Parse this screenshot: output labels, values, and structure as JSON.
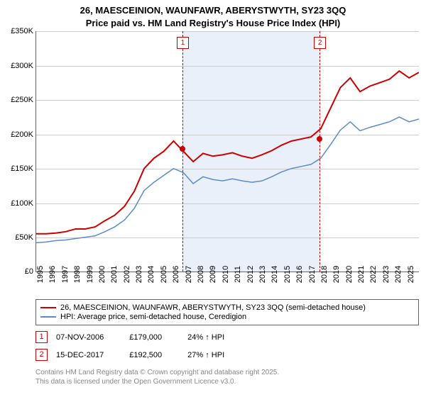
{
  "title_line1": "26, MAESCEINION, WAUNFAWR, ABERYSTWYTH, SY23 3QQ",
  "title_line2": "Price paid vs. HM Land Registry's House Price Index (HPI)",
  "chart": {
    "type": "line",
    "x_start": 1995,
    "x_end": 2026,
    "ylim": [
      0,
      350000
    ],
    "ytick_step": 50000,
    "y_ticks": [
      "£0",
      "£50K",
      "£100K",
      "£150K",
      "£200K",
      "£250K",
      "£300K",
      "£350K"
    ],
    "x_ticks": [
      1995,
      1996,
      1997,
      1998,
      1999,
      2000,
      2001,
      2002,
      2003,
      2004,
      2005,
      2006,
      2007,
      2008,
      2009,
      2010,
      2011,
      2012,
      2013,
      2014,
      2015,
      2016,
      2017,
      2018,
      2019,
      2020,
      2021,
      2022,
      2023,
      2024,
      2025
    ],
    "shade": {
      "start": 2006.85,
      "end": 2017.96,
      "color": "#eaf0fa"
    },
    "series_red": {
      "color": "#cc0000",
      "width": 2,
      "values": [
        55,
        55,
        56,
        58,
        62,
        62,
        65,
        74,
        82,
        95,
        117,
        150,
        165,
        175,
        190,
        175,
        160,
        172,
        168,
        170,
        173,
        168,
        165,
        170,
        176,
        184,
        190,
        193,
        196,
        208,
        238,
        268,
        282,
        262,
        270,
        275,
        280,
        292,
        282,
        290
      ]
    },
    "series_blue": {
      "color": "#5b8bc9",
      "width": 1.5,
      "values": [
        42,
        43,
        45,
        46,
        48,
        50,
        52,
        58,
        65,
        75,
        92,
        118,
        130,
        140,
        150,
        144,
        128,
        138,
        134,
        132,
        135,
        132,
        130,
        132,
        138,
        145,
        150,
        153,
        156,
        165,
        185,
        206,
        218,
        205,
        210,
        214,
        218,
        225,
        218,
        222
      ]
    },
    "markers": [
      {
        "num": "1",
        "x": 2006.85,
        "y": 179
      },
      {
        "num": "2",
        "x": 2017.96,
        "y": 193
      }
    ]
  },
  "legend": {
    "red": "26, MAESCEINION, WAUNFAWR, ABERYSTWYTH, SY23 3QQ (semi-detached house)",
    "blue": "HPI: Average price, semi-detached house, Ceredigion"
  },
  "sales": [
    {
      "num": "1",
      "date": "07-NOV-2006",
      "price": "£179,000",
      "hpi": "24% ↑ HPI"
    },
    {
      "num": "2",
      "date": "15-DEC-2017",
      "price": "£192,500",
      "hpi": "27% ↑ HPI"
    }
  ],
  "footnote1": "Contains HM Land Registry data © Crown copyright and database right 2025.",
  "footnote2": "This data is licensed under the Open Government Licence v3.0."
}
